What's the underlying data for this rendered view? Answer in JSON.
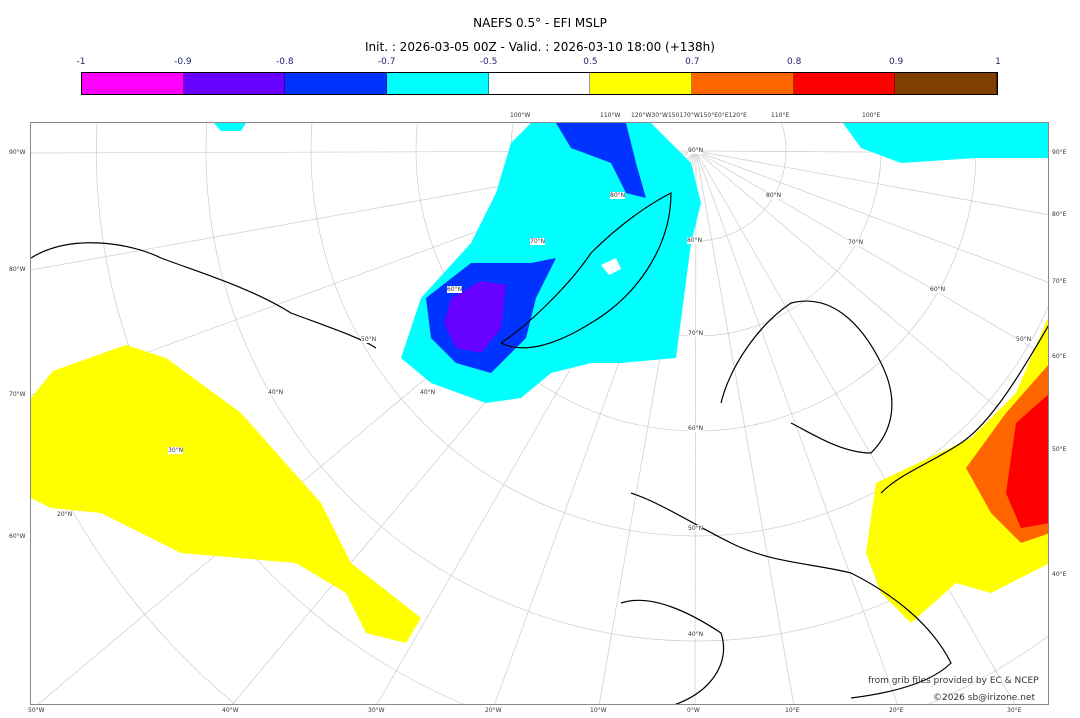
{
  "title": "NAEFS 0.5° - EFI MSLP",
  "subtitle": "Init. : 2026-03-05 00Z - Valid. : 2026-03-10 18:00 (+138h)",
  "colorbar": {
    "ticks": [
      "-1",
      "-0.9",
      "-0.8",
      "-0.7",
      "-0.5",
      "0.5",
      "0.7",
      "0.8",
      "0.9",
      "1"
    ],
    "colors": [
      "#ff00ff",
      "#6600ff",
      "#0033ff",
      "#00ffff",
      "#ffffff",
      "#ffff00",
      "#ff6600",
      "#ff0000",
      "#7f3f00"
    ]
  },
  "axes": {
    "left": [
      "90°W",
      "80°W",
      "70°W",
      "60°W"
    ],
    "right": [
      "90°E",
      "80°E",
      "70°E",
      "60°E",
      "50°E",
      "40°E"
    ],
    "bottom": [
      "50°W",
      "40°W",
      "30°W",
      "20°W",
      "10°W",
      "0°W",
      "10°E",
      "20°E",
      "30°E"
    ],
    "top": [
      "100°W",
      "110°W",
      "120°W30°W150170°W150°E0°E120°E",
      "110°E",
      "100°E"
    ],
    "interior": [
      "90°N",
      "80°N",
      "80°N",
      "80°N",
      "70°N",
      "70°N",
      "70°N",
      "60°N",
      "60°N",
      "60°N",
      "50°N",
      "50°N",
      "50°N",
      "40°N",
      "40°N",
      "40°N",
      "30°N",
      "20°N"
    ]
  },
  "credits": {
    "source": "from grib files provided by EC & NCEP",
    "copyright": "©2026 sb@irizone.net"
  }
}
